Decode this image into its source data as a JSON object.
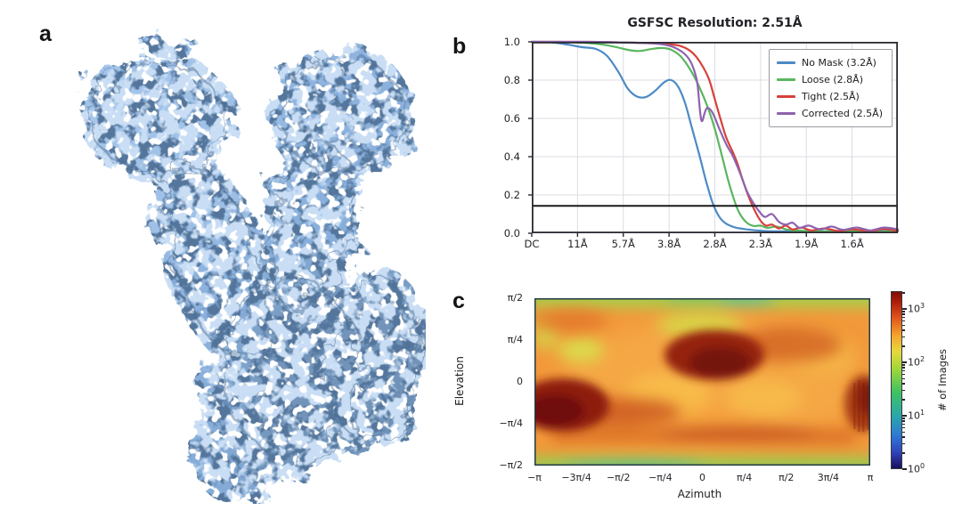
{
  "figure": {
    "panel_labels": {
      "a": "a",
      "b": "b",
      "c": "c"
    }
  },
  "panel_a": {
    "content": "cryo-EM density map, Y-shaped two-armed molecule",
    "map_color": "#8fb5e0"
  },
  "chart_data": [
    {
      "type": "line",
      "title": "GSFSC Resolution: 2.51Å",
      "xlabel": "",
      "ylabel": "",
      "x_tick_labels": [
        "DC",
        "11Å",
        "5.7Å",
        "3.8Å",
        "2.8Å",
        "2.3Å",
        "1.9Å",
        "1.6Å"
      ],
      "x_tick_positions": [
        0,
        1,
        2,
        3,
        4,
        5,
        6,
        7
      ],
      "xlim": [
        0,
        8
      ],
      "ylim": [
        0,
        1
      ],
      "y_ticks": [
        0.0,
        0.2,
        0.4,
        0.6,
        0.8,
        1.0
      ],
      "y_tick_labels": [
        "0.0",
        "0.2",
        "0.4",
        "0.6",
        "0.8",
        "1.0"
      ],
      "grid": true,
      "legend_position": "upper right",
      "threshold": 0.143,
      "threshold_color": "#1a1a1a",
      "frame_color": "#2a2a32",
      "grid_color": "#dcdce3",
      "series": [
        {
          "name": "No Mask (3.2Å)",
          "color": "#4d8ac6",
          "points": [
            [
              0,
              1.0
            ],
            [
              0.4,
              0.998
            ],
            [
              0.8,
              0.985
            ],
            [
              1.1,
              0.972
            ],
            [
              1.4,
              0.963
            ],
            [
              1.65,
              0.925
            ],
            [
              1.9,
              0.84
            ],
            [
              2.1,
              0.755
            ],
            [
              2.3,
              0.714
            ],
            [
              2.5,
              0.712
            ],
            [
              2.7,
              0.745
            ],
            [
              2.9,
              0.79
            ],
            [
              3.05,
              0.8
            ],
            [
              3.2,
              0.765
            ],
            [
              3.35,
              0.68
            ],
            [
              3.5,
              0.55
            ],
            [
              3.65,
              0.42
            ],
            [
              3.8,
              0.28
            ],
            [
              3.95,
              0.16
            ],
            [
              4.1,
              0.085
            ],
            [
              4.25,
              0.05
            ],
            [
              4.45,
              0.03
            ],
            [
              4.7,
              0.02
            ],
            [
              5.0,
              0.013
            ],
            [
              5.4,
              0.01
            ],
            [
              5.8,
              0.012
            ],
            [
              6.2,
              0.008
            ],
            [
              6.6,
              0.012
            ],
            [
              7.0,
              0.008
            ],
            [
              7.5,
              0.012
            ],
            [
              8.0,
              0.01
            ]
          ]
        },
        {
          "name": "Loose (2.8Å)",
          "color": "#59b65e",
          "points": [
            [
              0,
              1.0
            ],
            [
              0.6,
              1.0
            ],
            [
              1.0,
              0.997
            ],
            [
              1.4,
              0.99
            ],
            [
              1.8,
              0.975
            ],
            [
              2.1,
              0.958
            ],
            [
              2.35,
              0.952
            ],
            [
              2.6,
              0.962
            ],
            [
              2.85,
              0.968
            ],
            [
              3.05,
              0.958
            ],
            [
              3.25,
              0.925
            ],
            [
              3.45,
              0.86
            ],
            [
              3.65,
              0.77
            ],
            [
              3.85,
              0.655
            ],
            [
              4.0,
              0.545
            ],
            [
              4.15,
              0.41
            ],
            [
              4.3,
              0.27
            ],
            [
              4.45,
              0.155
            ],
            [
              4.55,
              0.1
            ],
            [
              4.7,
              0.055
            ],
            [
              4.85,
              0.038
            ],
            [
              5.0,
              0.04
            ],
            [
              5.15,
              0.028
            ],
            [
              5.35,
              0.035
            ],
            [
              5.6,
              0.018
            ],
            [
              6.0,
              0.012
            ],
            [
              6.5,
              0.01
            ],
            [
              7.0,
              0.012
            ],
            [
              7.5,
              0.008
            ],
            [
              8.0,
              0.01
            ]
          ]
        },
        {
          "name": "Tight (2.5Å)",
          "color": "#d8403a",
          "points": [
            [
              0,
              1.0
            ],
            [
              1.2,
              1.0
            ],
            [
              2.0,
              0.997
            ],
            [
              2.6,
              0.993
            ],
            [
              3.0,
              0.988
            ],
            [
              3.25,
              0.978
            ],
            [
              3.45,
              0.955
            ],
            [
              3.6,
              0.92
            ],
            [
              3.75,
              0.865
            ],
            [
              3.88,
              0.8
            ],
            [
              4.0,
              0.7
            ],
            [
              4.12,
              0.6
            ],
            [
              4.25,
              0.5
            ],
            [
              4.4,
              0.42
            ],
            [
              4.5,
              0.36
            ],
            [
              4.62,
              0.27
            ],
            [
              4.75,
              0.185
            ],
            [
              4.88,
              0.115
            ],
            [
              5.0,
              0.065
            ],
            [
              5.12,
              0.04
            ],
            [
              5.25,
              0.045
            ],
            [
              5.4,
              0.025
            ],
            [
              5.55,
              0.04
            ],
            [
              5.7,
              0.02
            ],
            [
              5.9,
              0.03
            ],
            [
              6.1,
              0.015
            ],
            [
              6.4,
              0.025
            ],
            [
              6.7,
              0.012
            ],
            [
              7.0,
              0.02
            ],
            [
              7.4,
              0.012
            ],
            [
              7.7,
              0.022
            ],
            [
              8.0,
              0.012
            ]
          ]
        },
        {
          "name": "Corrected (2.5Å)",
          "color": "#8e63ae",
          "points": [
            [
              0,
              1.0
            ],
            [
              1.2,
              1.0
            ],
            [
              2.0,
              0.997
            ],
            [
              2.6,
              0.992
            ],
            [
              2.9,
              0.985
            ],
            [
              3.1,
              0.972
            ],
            [
              3.3,
              0.945
            ],
            [
              3.45,
              0.905
            ],
            [
              3.55,
              0.85
            ],
            [
              3.62,
              0.78
            ],
            [
              3.68,
              0.63
            ],
            [
              3.72,
              0.585
            ],
            [
              3.78,
              0.63
            ],
            [
              3.84,
              0.655
            ],
            [
              3.95,
              0.63
            ],
            [
              4.1,
              0.545
            ],
            [
              4.25,
              0.465
            ],
            [
              4.4,
              0.4
            ],
            [
              4.55,
              0.315
            ],
            [
              4.7,
              0.22
            ],
            [
              4.85,
              0.155
            ],
            [
              5.0,
              0.105
            ],
            [
              5.1,
              0.085
            ],
            [
              5.25,
              0.1
            ],
            [
              5.4,
              0.06
            ],
            [
              5.55,
              0.045
            ],
            [
              5.7,
              0.055
            ],
            [
              5.85,
              0.028
            ],
            [
              6.05,
              0.04
            ],
            [
              6.3,
              0.02
            ],
            [
              6.55,
              0.035
            ],
            [
              6.8,
              0.018
            ],
            [
              7.1,
              0.03
            ],
            [
              7.4,
              0.015
            ],
            [
              7.7,
              0.03
            ],
            [
              8.0,
              0.02
            ]
          ]
        }
      ]
    },
    {
      "type": "heatmap",
      "title": "",
      "xlabel": "Azimuth",
      "ylabel": "Elevation",
      "x_tick_labels": [
        "−π",
        "−3π/4",
        "−π/2",
        "−π/4",
        "0",
        "π/4",
        "π/2",
        "3π/4",
        "π"
      ],
      "y_tick_labels": [
        "π/2",
        "π/4",
        "0",
        "−π/4",
        "−π/2"
      ],
      "xlim_rad": [
        -3.14159,
        3.14159
      ],
      "ylim_rad": [
        -1.5708,
        1.5708
      ],
      "colormap": "turbo/jet",
      "background_level": "~10^2 orange plateau",
      "hotspots": [
        {
          "azimuth": "-π … -3π/4",
          "elevation": "-π/4 … 0",
          "value": "~10^3 (dark red maximum)"
        },
        {
          "azimuth": "0 … π/4",
          "elevation": "0 … π/4",
          "value": "~10^3 (dark red)"
        },
        {
          "azimuth": "near π",
          "elevation": "-π/4 … 0",
          "value": "~10^2.5 (red patch, striped)"
        },
        {
          "azimuth": "full width",
          "elevation": "≈ -3π/8 band",
          "value": "~10^2.5 (orange-red band)"
        },
        {
          "azimuth": "full width",
          "elevation": "±π/2 edges",
          "value": "~10^1.5 (green)"
        }
      ],
      "colorbar": {
        "label": "# of Images",
        "scale": "log",
        "tick_exponents": [
          3,
          2,
          1,
          0
        ],
        "range": [
          1,
          1000
        ]
      }
    }
  ]
}
